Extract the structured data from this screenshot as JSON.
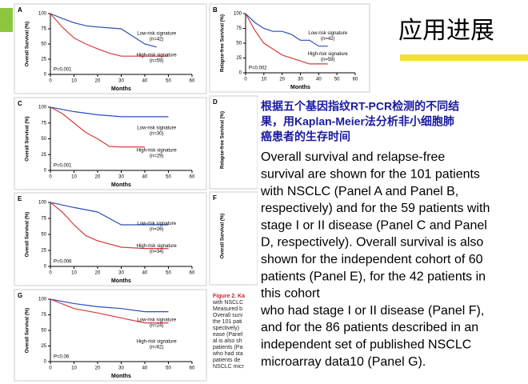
{
  "slide_title": "应用进展",
  "chart_data": [
    {
      "type": "line",
      "panel": "A",
      "ylabel": "Overall Survival (%)",
      "xlabel": "Months",
      "xlim": [
        0,
        60
      ],
      "xticks": [
        0,
        10,
        20,
        30,
        40,
        50,
        60
      ],
      "ylim": [
        0,
        100
      ],
      "yticks": [
        0,
        25,
        50,
        75,
        100
      ],
      "p_label": "P=0.001",
      "series": [
        {
          "name": "Low-risk signature",
          "n_label": "(n=42)",
          "color": "#2a4fb8",
          "x": [
            0,
            5,
            10,
            15,
            20,
            30,
            40,
            45
          ],
          "values": [
            100,
            92,
            85,
            80,
            78,
            75,
            50,
            45
          ]
        },
        {
          "name": "High-risk signature",
          "n_label": "(n=59)",
          "color": "#d83a3a",
          "x": [
            0,
            5,
            10,
            15,
            20,
            25,
            30,
            40,
            50
          ],
          "values": [
            100,
            78,
            60,
            50,
            42,
            35,
            30,
            30,
            30
          ]
        }
      ]
    },
    {
      "type": "line",
      "panel": "B",
      "ylabel": "Relapse-free Survival (%)",
      "xlabel": "Months",
      "xlim": [
        0,
        60
      ],
      "xticks": [
        0,
        10,
        20,
        30,
        40,
        50,
        60
      ],
      "ylim": [
        0,
        100
      ],
      "yticks": [
        0,
        25,
        50,
        75,
        100
      ],
      "p_label": "P=0.002",
      "series": [
        {
          "name": "Low-risk signature",
          "n_label": "(n=42)",
          "color": "#2a4fb8",
          "x": [
            0,
            5,
            10,
            15,
            20,
            25,
            30,
            35,
            40,
            45
          ],
          "values": [
            100,
            85,
            75,
            70,
            70,
            65,
            55,
            55,
            45,
            45
          ]
        },
        {
          "name": "High-risk signature",
          "n_label": "(n=59)",
          "color": "#d83a3a",
          "x": [
            0,
            5,
            10,
            15,
            20,
            30,
            35,
            45
          ],
          "values": [
            100,
            72,
            50,
            40,
            30,
            20,
            15,
            15
          ]
        }
      ]
    },
    {
      "type": "line",
      "panel": "C",
      "ylabel": "Overall Survival (%)",
      "xlabel": "Months",
      "xlim": [
        0,
        60
      ],
      "xticks": [
        0,
        10,
        20,
        30,
        40,
        50,
        60
      ],
      "ylim": [
        0,
        100
      ],
      "yticks": [
        0,
        25,
        50,
        75,
        100
      ],
      "p_label": "P=0.001",
      "series": [
        {
          "name": "Low-risk signature",
          "n_label": "(n=30)",
          "color": "#2a4fb8",
          "x": [
            0,
            10,
            20,
            30,
            40,
            50
          ],
          "values": [
            100,
            93,
            88,
            85,
            85,
            85
          ]
        },
        {
          "name": "High-risk signature",
          "n_label": "(n=29)",
          "color": "#d83a3a",
          "x": [
            0,
            5,
            10,
            15,
            20,
            25,
            30,
            40
          ],
          "values": [
            100,
            90,
            75,
            60,
            50,
            38,
            37,
            37
          ]
        }
      ]
    },
    {
      "type": "line",
      "panel": "E",
      "ylabel": "Overall Survival (%)",
      "xlabel": "Months",
      "xlim": [
        0,
        60
      ],
      "xticks": [
        0,
        10,
        20,
        30,
        40,
        50,
        60
      ],
      "ylim": [
        0,
        100
      ],
      "yticks": [
        0,
        25,
        50,
        75,
        100
      ],
      "p_label": "P=0.006",
      "series": [
        {
          "name": "Low-risk signature",
          "n_label": "(n=26)",
          "color": "#2a4fb8",
          "x": [
            0,
            10,
            20,
            30,
            40,
            50
          ],
          "values": [
            100,
            92,
            85,
            65,
            65,
            65
          ]
        },
        {
          "name": "High-risk signature",
          "n_label": "(n=34)",
          "color": "#d83a3a",
          "x": [
            0,
            5,
            10,
            15,
            20,
            30,
            40,
            50
          ],
          "values": [
            100,
            85,
            65,
            48,
            40,
            30,
            28,
            28
          ]
        }
      ]
    },
    {
      "type": "line",
      "panel": "G",
      "ylabel": "Overall Survival (%)",
      "xlabel": "Months",
      "xlim": [
        0,
        60
      ],
      "xticks": [
        0,
        10,
        20,
        30,
        40,
        50,
        60
      ],
      "ylim": [
        0,
        100
      ],
      "yticks": [
        0,
        25,
        50,
        75,
        100
      ],
      "p_label": "P=0.06",
      "series": [
        {
          "name": "Low-risk signature",
          "n_label": "(n=24)",
          "color": "#2a4fb8",
          "x": [
            0,
            10,
            20,
            30,
            40,
            50
          ],
          "values": [
            100,
            93,
            88,
            85,
            80,
            80
          ]
        },
        {
          "name": "High-risk signature",
          "n_label": "(n=62)",
          "color": "#d83a3a",
          "x": [
            0,
            10,
            20,
            30,
            40,
            50
          ],
          "values": [
            100,
            85,
            78,
            70,
            62,
            62
          ]
        }
      ]
    }
  ],
  "covered_panels": [
    {
      "panel": "D",
      "ylabel": "Relapse-free Survival (%)"
    },
    {
      "panel": "F",
      "ylabel": "Overall Survival (%)"
    }
  ],
  "caption_fragment": [
    "Figure 2. Ka",
    "with NSCLC",
    "Measured b",
    "Overall surv",
    "the 101 pati",
    "spectively)",
    "ease (Panel",
    "al is also sh",
    "patients (Pa",
    "who had sta",
    "patients de",
    "NSCLC micr"
  ],
  "text_box": {
    "chinese_lines": [
      "根据五个基因指纹RT-PCR检测的不同结",
      "果，用Kaplan-Meier法分析非小细胞肺",
      "癌患者的生存时间"
    ],
    "english_lines": [
      "Overall survival and relapse-free",
      "survival are shown for the 101 patients",
      "with NSCLC (Panel A and Panel B,",
      "respectively) and for the 59 patients with",
      "stage I or II disease (Panel C and Panel",
      "D, respectively). Overall survival is also",
      "shown for the independent cohort of 60",
      "patients (Panel E), for the 42 patients in",
      "this cohort",
      "who had stage I or II disease (Panel F),",
      "and for the 86 patients described in an",
      "independent set of published NSCLC",
      "microarray data10 (Panel G)."
    ]
  }
}
